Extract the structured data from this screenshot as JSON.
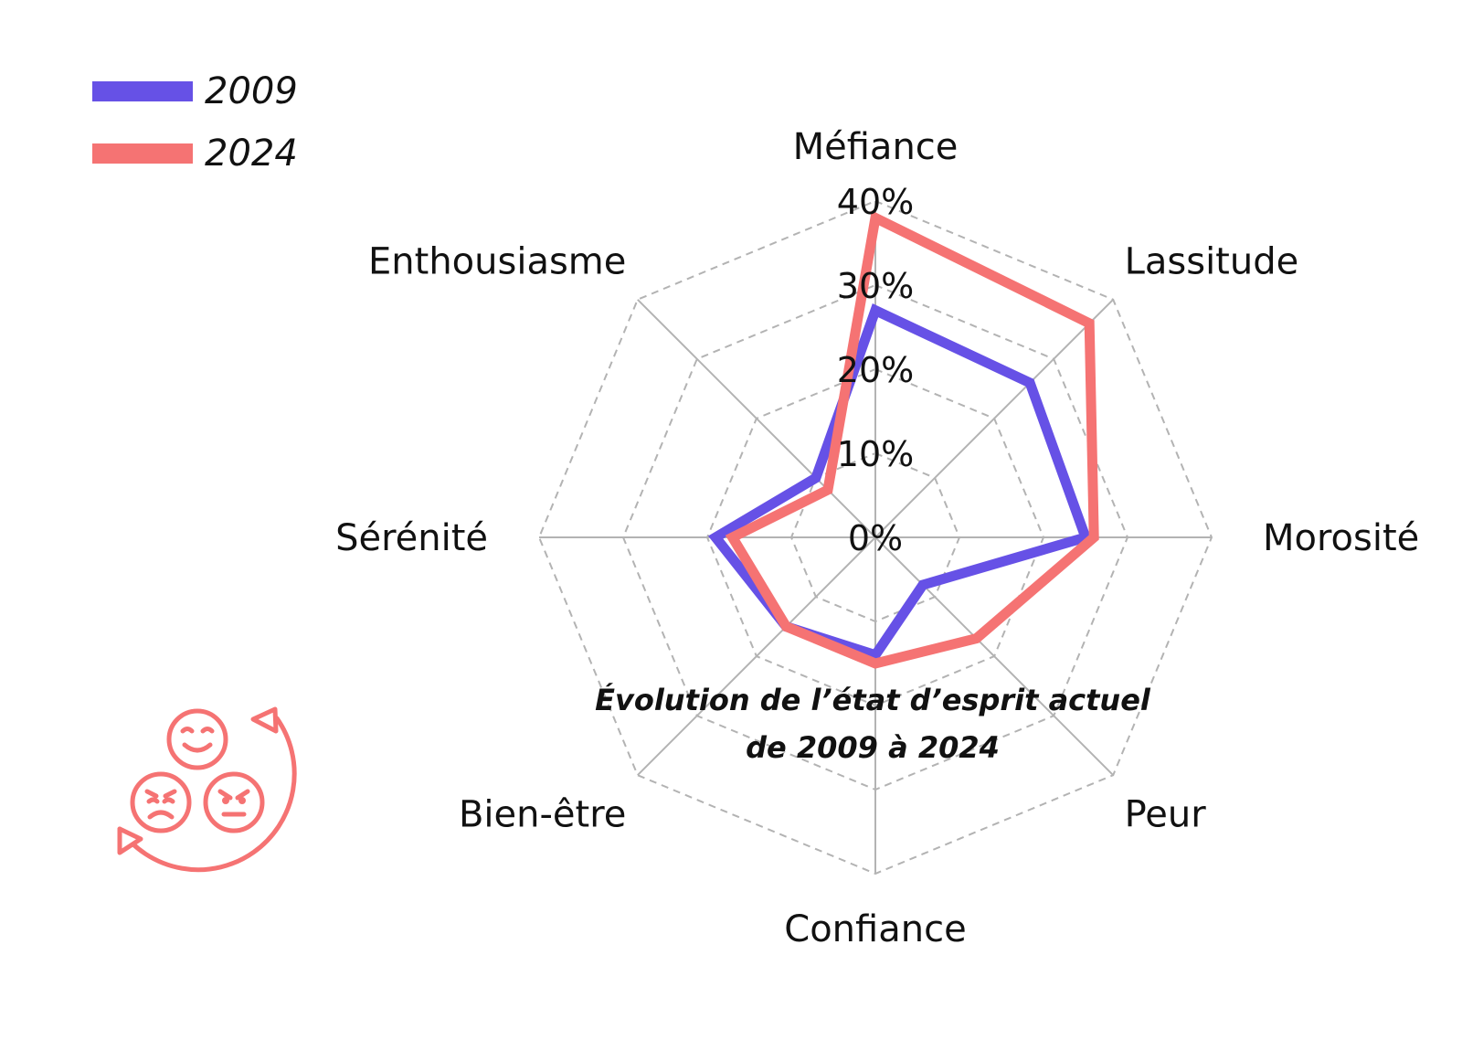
{
  "chart_data": {
    "type": "radar",
    "title_lines": [
      "Évolution de l’état d’esprit actuel",
      "de 2009 à 2024"
    ],
    "categories": [
      "Méfiance",
      "Lassitude",
      "Morosité",
      "Peur",
      "Confiance",
      "Bien-être",
      "Sérénité",
      "Enthousiasme"
    ],
    "ticks": [
      "0%",
      "10%",
      "20%",
      "30%",
      "40%"
    ],
    "rmax": 40,
    "grid_levels": [
      10,
      20,
      30,
      40
    ],
    "series": [
      {
        "name": "2009",
        "color": "#6651E6",
        "values": [
          27,
          26,
          25,
          8,
          14,
          15,
          19,
          10
        ]
      },
      {
        "name": "2024",
        "color": "#F57373",
        "values": [
          38,
          36,
          26,
          17,
          15,
          15,
          17,
          8
        ]
      }
    ],
    "legend_position": "top-left",
    "grid": true,
    "icon": "emotions-cycle-icon"
  }
}
